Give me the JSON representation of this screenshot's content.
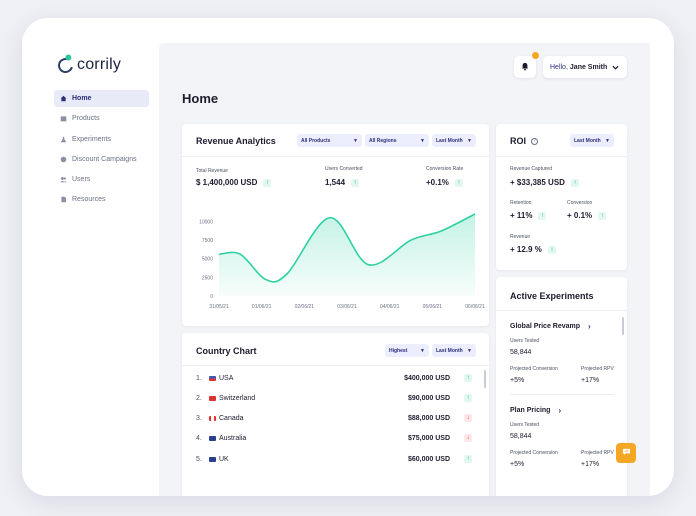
{
  "app": {
    "logo": "corrily"
  },
  "sidebar": {
    "items": [
      {
        "label": "Home",
        "icon": "home-icon"
      },
      {
        "label": "Products",
        "icon": "box-icon"
      },
      {
        "label": "Experiments",
        "icon": "flask-icon"
      },
      {
        "label": "Discount Campaigns",
        "icon": "tag-icon"
      },
      {
        "label": "Users",
        "icon": "users-icon"
      },
      {
        "label": "Resources",
        "icon": "document-icon"
      }
    ]
  },
  "header": {
    "greeting": "Hello,",
    "user_name": "Jane Smith"
  },
  "page": {
    "title": "Home"
  },
  "revenue": {
    "title": "Revenue Analytics",
    "filters": [
      "All Products",
      "All Regions",
      "Last Month"
    ],
    "metrics": [
      {
        "label": "Total Revenue",
        "value": "$ 1,400,000 USD"
      },
      {
        "label": "Users Converted",
        "value": "1,544"
      },
      {
        "label": "Conversion Rate",
        "value": "+0.1%"
      }
    ]
  },
  "chart_data": {
    "type": "area",
    "title": "",
    "xlabel": "",
    "ylabel": "",
    "x": [
      "31/05/21",
      "01/06/21",
      "02/06/21",
      "03/06/21",
      "04/06/21",
      "05/06/21",
      "06/06/21"
    ],
    "yticks": [
      0,
      2500,
      5000,
      7500,
      10000
    ],
    "ylim": [
      0,
      11000
    ],
    "series": [
      {
        "points": [
          [
            0,
            5600
          ],
          [
            0.5,
            5600
          ],
          [
            1.1,
            2200
          ],
          [
            1.6,
            3000
          ],
          [
            2.6,
            10500
          ],
          [
            3.5,
            4200
          ],
          [
            4.5,
            7500
          ],
          [
            5.2,
            8700
          ],
          [
            6,
            11000
          ]
        ]
      }
    ],
    "color": "#2ed1a2"
  },
  "roi": {
    "title": "ROI",
    "filter": "Last Month",
    "metrics": [
      {
        "label": "Revenue Captured",
        "value": "+ $33,385 USD"
      },
      {
        "label": "Retention",
        "value": "+ 11%"
      },
      {
        "label": "Conversion",
        "value": "+ 0.1%"
      },
      {
        "label": "Revenue",
        "value": "+ 12.9 %"
      }
    ]
  },
  "country": {
    "title": "Country Chart",
    "filters": [
      "Highest",
      "Last Month"
    ],
    "rows": [
      {
        "rank": "1.",
        "name": "USA",
        "amount": "$400,000 USD",
        "trend": "up"
      },
      {
        "rank": "2.",
        "name": "Switzerland",
        "amount": "$90,000 USD",
        "trend": "up"
      },
      {
        "rank": "3.",
        "name": "Canada",
        "amount": "$88,000 USD",
        "trend": "down"
      },
      {
        "rank": "4.",
        "name": "Australia",
        "amount": "$75,000 USD",
        "trend": "down"
      },
      {
        "rank": "5.",
        "name": "UK",
        "amount": "$60,000 USD",
        "trend": "up"
      }
    ]
  },
  "experiments": {
    "title": "Active Experiments",
    "items": [
      {
        "name": "Global Price Revamp",
        "users_label": "Users Tested",
        "users": "58,844",
        "conv_label": "Projected Conversion",
        "conv": "+5%",
        "rpv_label": "Projected RPV",
        "rpv": "+17%"
      },
      {
        "name": "Plan Pricing",
        "users_label": "Users Tested",
        "users": "58,844",
        "conv_label": "Projected Conversion",
        "conv": "+5%",
        "rpv_label": "Projected RPV",
        "rpv": "+17%"
      }
    ]
  },
  "colors": {
    "accent": "#2b2e7a",
    "chart": "#2ed1a2",
    "notify": "#f5a623",
    "up": "#22b07d",
    "down": "#e04848"
  }
}
